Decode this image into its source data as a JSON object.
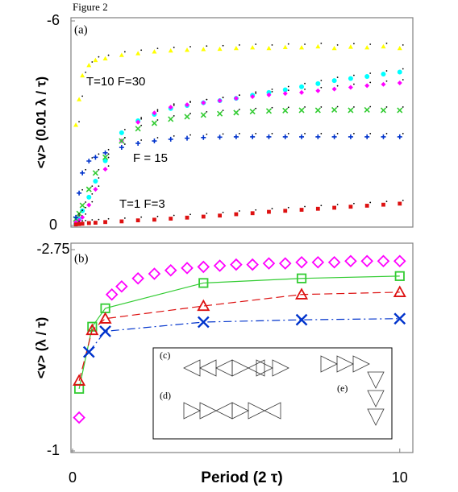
{
  "title": "Figure 2",
  "chart_data": [
    {
      "type": "scatter",
      "label": "(a)",
      "ylabel": "<v>  (0.01 λ / τ)",
      "xlim": [
        0,
        10.4
      ],
      "ylim": [
        0,
        -6
      ],
      "yticks": [
        -6,
        0
      ],
      "annotations": [
        "T=10  F=30",
        "F = 15",
        "T=1  F=3"
      ],
      "x": [
        0.1,
        0.2,
        0.3,
        0.5,
        0.7,
        1,
        1.5,
        2,
        2.5,
        3,
        3.5,
        4,
        4.5,
        5,
        5.5,
        6,
        6.5,
        7,
        7.5,
        8,
        8.5,
        9,
        9.5,
        10
      ],
      "series": [
        {
          "color": "#ffff00",
          "marker": "triangle",
          "values": [
            -2.95,
            -3.7,
            -4.4,
            -4.7,
            -4.85,
            -4.9,
            -5.0,
            -5.05,
            -5.1,
            -5.13,
            -5.15,
            -5.17,
            -5.18,
            -5.2,
            -5.22,
            -5.2,
            -5.23,
            -5.22,
            -5.25,
            -5.2,
            -5.24,
            -5.22,
            -5.25,
            -5.2
          ]
        },
        {
          "color": "#00ffff",
          "marker": "circle",
          "values": [
            -0.05,
            -0.19,
            -0.43,
            -0.83,
            -1.3,
            -1.9,
            -2.72,
            -3.07,
            -3.26,
            -3.43,
            -3.52,
            -3.6,
            -3.66,
            -3.73,
            -3.82,
            -3.9,
            -3.98,
            -4.07,
            -4.16,
            -4.25,
            -4.31,
            -4.37,
            -4.44,
            -4.5
          ]
        },
        {
          "color": "#ff00ff",
          "marker": "diamond",
          "values": [
            -0.1,
            -0.15,
            -0.24,
            -0.6,
            -1.06,
            -1.65,
            -2.48,
            -3.03,
            -3.3,
            -3.47,
            -3.54,
            -3.6,
            -3.66,
            -3.73,
            -3.78,
            -3.83,
            -3.87,
            -3.9,
            -3.95,
            -4.0,
            -4.05,
            -4.1,
            -4.14,
            -4.18
          ]
        },
        {
          "color": "#33cc33",
          "marker": "x",
          "values": [
            -0.19,
            -0.35,
            -0.59,
            -1.06,
            -1.54,
            -2.0,
            -2.48,
            -2.84,
            -3.0,
            -3.12,
            -3.19,
            -3.24,
            -3.28,
            -3.31,
            -3.34,
            -3.36,
            -3.37,
            -3.38,
            -3.38,
            -3.39,
            -3.38,
            -3.39,
            -3.38,
            -3.38
          ]
        },
        {
          "color": "#0033cc",
          "marker": "plus",
          "values": [
            -0.24,
            -0.95,
            -1.54,
            -1.89,
            -2.0,
            -2.13,
            -2.29,
            -2.41,
            -2.48,
            -2.53,
            -2.56,
            -2.58,
            -2.59,
            -2.6,
            -2.6,
            -2.6,
            -2.6,
            -2.6,
            -2.6,
            -2.6,
            -2.6,
            -2.6,
            -2.6,
            -2.6
          ]
        },
        {
          "color": "#dd1111",
          "marker": "square",
          "values": [
            -0.03,
            -0.04,
            -0.05,
            -0.07,
            -0.08,
            -0.1,
            -0.12,
            -0.15,
            -0.17,
            -0.2,
            -0.23,
            -0.26,
            -0.29,
            -0.33,
            -0.36,
            -0.4,
            -0.43,
            -0.46,
            -0.49,
            -0.52,
            -0.55,
            -0.58,
            -0.61,
            -0.64
          ]
        }
      ]
    },
    {
      "type": "scatter",
      "label": "(b)",
      "ylabel": "<v> (λ / τ)",
      "xlabel": "Period (2 τ)",
      "xlim": [
        0,
        10.4
      ],
      "xticks": [
        0,
        10
      ],
      "ylim": [
        -1,
        -2.75
      ],
      "yticks": [
        -2.75,
        -1
      ],
      "inset_labels": [
        "(c)",
        "(d)",
        "(e)"
      ],
      "series": [
        {
          "color": "#ff00ff",
          "marker": "diamond",
          "x": [
            0.2,
            1.2,
            1.5,
            2,
            2.5,
            3,
            3.5,
            4,
            4.5,
            5,
            5.5,
            6,
            6.5,
            7,
            7.5,
            8,
            8.5,
            9,
            9.5,
            10
          ],
          "values": [
            -1.29,
            -2.36,
            -2.43,
            -2.5,
            -2.54,
            -2.57,
            -2.59,
            -2.6,
            -2.61,
            -2.62,
            -2.62,
            -2.63,
            -2.63,
            -2.64,
            -2.64,
            -2.64,
            -2.65,
            -2.65,
            -2.65,
            -2.65
          ]
        },
        {
          "color": "#33cc33",
          "marker": "square",
          "line": "solid",
          "x": [
            0.2,
            0.6,
            1,
            4,
            7,
            10
          ],
          "values": [
            -1.54,
            -2.08,
            -2.24,
            -2.46,
            -2.5,
            -2.52
          ]
        },
        {
          "color": "#dd1111",
          "marker": "triangle",
          "line": "dashed",
          "x": [
            0.2,
            0.6,
            1,
            4,
            7,
            10
          ],
          "values": [
            -1.61,
            -2.05,
            -2.15,
            -2.26,
            -2.36,
            -2.38
          ]
        },
        {
          "color": "#0033cc",
          "marker": "x",
          "line": "dashdot",
          "x": [
            0.5,
            1,
            4,
            7,
            10
          ],
          "values": [
            -1.86,
            -2.04,
            -2.12,
            -2.14,
            -2.15
          ]
        }
      ]
    }
  ]
}
